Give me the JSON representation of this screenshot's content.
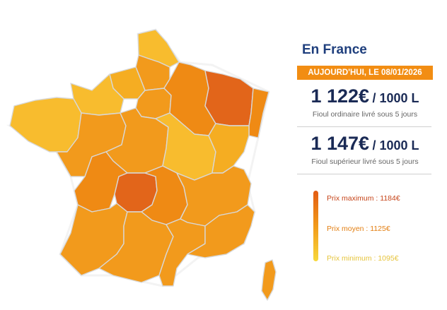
{
  "panel": {
    "title": "En France",
    "date_banner": "AUJOURD'HUI, LE 08/01/2026",
    "ordinary": {
      "price": "1 122€",
      "unit": "/ 1000 L",
      "caption": "Fioul ordinaire livré sous 5 jours"
    },
    "superior": {
      "price": "1 147€",
      "unit": "/ 1000 L",
      "caption": "Fioul supérieur livré sous 5 jours"
    }
  },
  "legend": {
    "max_label": "Prix maximum : 1184€",
    "avg_label": "Prix moyen : 1125€",
    "min_label": "Prix minimum : 1095€"
  },
  "colors": {
    "max": "#e2651a",
    "high": "#ef8a14",
    "mid": "#f29a1c",
    "midlow": "#f5ad22",
    "low": "#f8bc2e",
    "min": "#f9cb38",
    "title": "#1f3f7d",
    "banner": "#f28d13"
  },
  "map_regions": [
    {
      "name": "nord",
      "level": "low"
    },
    {
      "name": "picardie",
      "level": "mid"
    },
    {
      "name": "haute-normandie",
      "level": "midlow"
    },
    {
      "name": "basse-normandie",
      "level": "low"
    },
    {
      "name": "bretagne",
      "level": "low"
    },
    {
      "name": "ile-de-france",
      "level": "mid"
    },
    {
      "name": "champagne-ardenne",
      "level": "high"
    },
    {
      "name": "lorraine",
      "level": "max"
    },
    {
      "name": "alsace",
      "level": "high"
    },
    {
      "name": "pays-de-la-loire",
      "level": "mid"
    },
    {
      "name": "centre",
      "level": "mid"
    },
    {
      "name": "bourgogne",
      "level": "low"
    },
    {
      "name": "franche-comte",
      "level": "midlow"
    },
    {
      "name": "poitou-charentes",
      "level": "high"
    },
    {
      "name": "limousin",
      "level": "max"
    },
    {
      "name": "auvergne",
      "level": "high"
    },
    {
      "name": "rhone-alpes",
      "level": "mid"
    },
    {
      "name": "aquitaine",
      "level": "mid"
    },
    {
      "name": "midi-pyrenees",
      "level": "mid"
    },
    {
      "name": "languedoc-roussillon",
      "level": "mid"
    },
    {
      "name": "paca",
      "level": "mid"
    },
    {
      "name": "corse",
      "level": "mid"
    }
  ]
}
